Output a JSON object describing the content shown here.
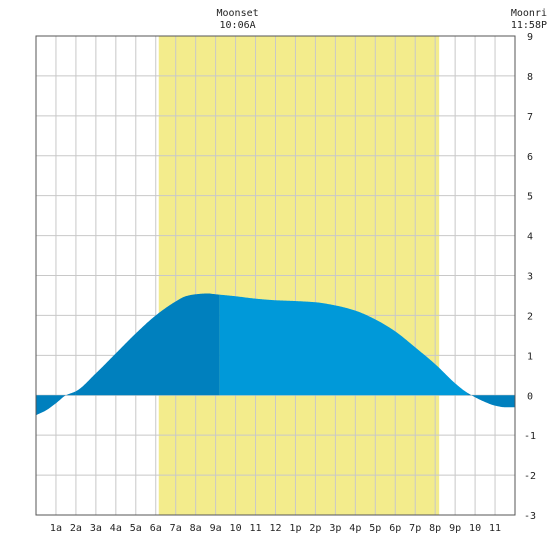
{
  "chart_data": {
    "type": "area",
    "x_unit": "hour of day",
    "x_range": [
      0,
      24
    ],
    "ylim": [
      -3,
      9
    ],
    "y_ticks": [
      "-3",
      "-2",
      "-1",
      "0",
      "1",
      "2",
      "3",
      "4",
      "5",
      "6",
      "7",
      "8",
      "9"
    ],
    "x_ticks": [
      {
        "hour": 1,
        "label": "1a"
      },
      {
        "hour": 2,
        "label": "2a"
      },
      {
        "hour": 3,
        "label": "3a"
      },
      {
        "hour": 4,
        "label": "4a"
      },
      {
        "hour": 5,
        "label": "5a"
      },
      {
        "hour": 6,
        "label": "6a"
      },
      {
        "hour": 7,
        "label": "7a"
      },
      {
        "hour": 8,
        "label": "8a"
      },
      {
        "hour": 9,
        "label": "9a"
      },
      {
        "hour": 10,
        "label": "10"
      },
      {
        "hour": 11,
        "label": "11"
      },
      {
        "hour": 12,
        "label": "12"
      },
      {
        "hour": 13,
        "label": "1p"
      },
      {
        "hour": 14,
        "label": "2p"
      },
      {
        "hour": 15,
        "label": "3p"
      },
      {
        "hour": 16,
        "label": "4p"
      },
      {
        "hour": 17,
        "label": "5p"
      },
      {
        "hour": 18,
        "label": "6p"
      },
      {
        "hour": 19,
        "label": "7p"
      },
      {
        "hour": 20,
        "label": "8p"
      },
      {
        "hour": 21,
        "label": "9p"
      },
      {
        "hour": 22,
        "label": "10"
      },
      {
        "hour": 23,
        "label": "11"
      }
    ],
    "grid": true,
    "daylight_hours": [
      6.15,
      20.2
    ],
    "moon_events": [
      {
        "label": "Moonset",
        "time": "10:06A",
        "hour": 10.1
      },
      {
        "label": "Moonri",
        "time": "11:58P",
        "hour": 23.97
      }
    ],
    "tide_series": {
      "x": [
        0,
        0.5,
        1,
        1.5,
        2,
        3,
        4,
        5,
        6,
        7,
        7.5,
        8,
        8.6,
        9,
        10,
        11,
        12,
        13,
        14,
        15,
        16,
        17,
        18,
        19,
        20,
        21,
        21.5,
        22,
        22.5,
        23,
        23.5,
        24
      ],
      "values": [
        -0.5,
        -0.38,
        -0.2,
        0.0,
        0.1,
        0.55,
        1.05,
        1.55,
        2.0,
        2.35,
        2.48,
        2.53,
        2.55,
        2.53,
        2.48,
        2.42,
        2.38,
        2.36,
        2.33,
        2.25,
        2.12,
        1.9,
        1.6,
        1.2,
        0.78,
        0.3,
        0.1,
        -0.05,
        -0.17,
        -0.26,
        -0.3,
        -0.3
      ]
    },
    "highlight_range": [
      2,
      9.2
    ],
    "colors": {
      "daylight": "#f3ec8c",
      "tide_water": "#0099d9",
      "tide_highlight": "#0080be",
      "grid": "#c8c8c8",
      "frame": "#555555"
    }
  }
}
